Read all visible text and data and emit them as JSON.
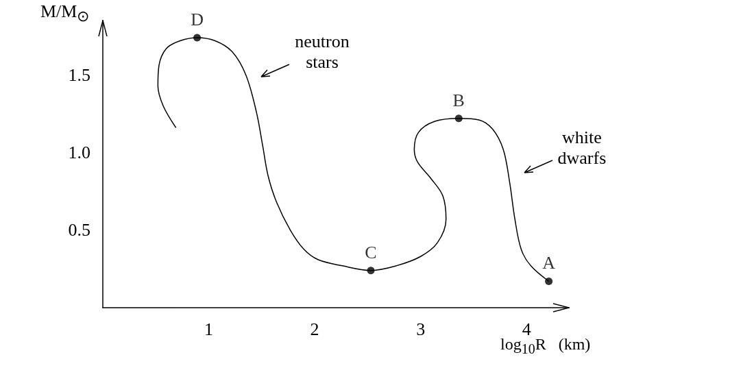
{
  "chart_data": {
    "type": "line",
    "xlabel": "log$_{10}$R   (km)",
    "ylabel": "M/M$_{⊙}$",
    "xlim": [
      0,
      4.4
    ],
    "ylim": [
      0,
      1.85
    ],
    "xticks": [
      1,
      2,
      3,
      4
    ],
    "yticks": [
      0.5,
      {
        "value": 1,
        "label": "1.0"
      },
      1.5
    ],
    "grid": false,
    "series": [
      {
        "color": "#000000",
        "marker": "none",
        "x": [
          0.69,
          0.57,
          0.52,
          0.53,
          0.6,
          0.73,
          0.89,
          1.06,
          1.22,
          1.35,
          1.45,
          1.51,
          1.56,
          1.64,
          1.77,
          1.9,
          2.03,
          2.26,
          2.53,
          2.77,
          3.0,
          3.16,
          3.24,
          3.21,
          3.1,
          2.97,
          2.94,
          2.98,
          3.13,
          3.36,
          3.55,
          3.68,
          3.78,
          3.84,
          3.89,
          3.95,
          4.04,
          4.21
        ],
        "values": [
          1.16,
          1.3,
          1.43,
          1.56,
          1.67,
          1.72,
          1.74,
          1.72,
          1.65,
          1.5,
          1.26,
          1.04,
          0.85,
          0.68,
          0.5,
          0.375,
          0.31,
          0.27,
          0.24,
          0.27,
          0.33,
          0.42,
          0.57,
          0.72,
          0.83,
          0.94,
          1.02,
          1.13,
          1.2,
          1.22,
          1.21,
          1.15,
          1.02,
          0.81,
          0.57,
          0.375,
          0.27,
          0.17
        ]
      },
      {
        "type": "scatter",
        "color": "#000000",
        "marker": "circle",
        "x": [
          0.89,
          2.53,
          3.36,
          4.21
        ],
        "values": [
          1.74,
          0.24,
          1.22,
          0.17
        ],
        "value_labels": [
          "D",
          "C",
          "B",
          "A"
        ]
      }
    ],
    "annotations": [
      "neutron stars",
      "white dwarfs"
    ]
  }
}
